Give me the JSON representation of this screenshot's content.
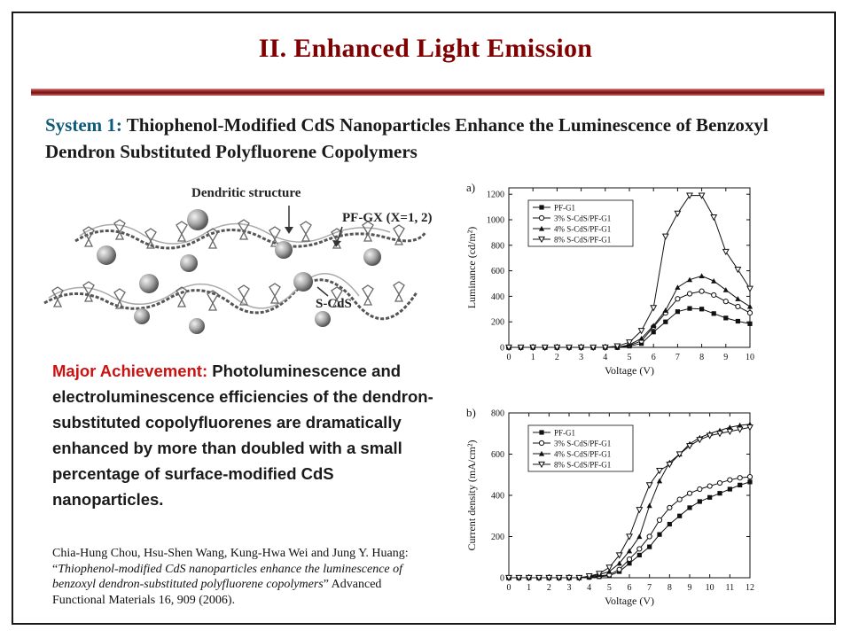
{
  "title": "II. Enhanced Light Emission",
  "subtitle": {
    "lead": "System 1:",
    "text": " Thiophenol-Modified CdS Nanoparticles Enhance the Luminescence of Benzoxyl Dendron Substituted Polyfluorene Copolymers"
  },
  "diagram": {
    "label_dendritic": "Dendritic structure",
    "label_pfgx": "PF-GX (X=1, 2)",
    "label_scds": "S-CdS"
  },
  "achievement": {
    "lead": "Major Achievement:",
    "text": " Photoluminescence and electroluminescence efficiencies of the dendron-substituted copolyfluorenes are dramatically enhanced by more than doubled with a small percentage of surface-modified CdS nanoparticles."
  },
  "citation": {
    "authors": "Chia-Hung Chou, Hsu-Shen Wang, Kung-Hwa Wei and Jung Y. Huang: “",
    "paper_title": "Thiophenol-modified CdS nanoparticles enhance the luminescence of benzoxyl dendron-substituted polyfluorene copolymers",
    "journal": "” Advanced Functional Materials 16, 909 (2006)."
  },
  "chart_data": [
    {
      "type": "line",
      "panel_label": "a)",
      "xlabel": "Voltage (V)",
      "ylabel": "Luminance (cd/m²)",
      "xlim": [
        0,
        10
      ],
      "ylim": [
        0,
        1250
      ],
      "xticks": [
        0,
        1,
        2,
        3,
        4,
        5,
        6,
        7,
        8,
        9,
        10
      ],
      "yticks": [
        0,
        200,
        400,
        600,
        800,
        1000,
        1200
      ],
      "legend_position": "top-left",
      "x": [
        0,
        0.5,
        1,
        1.5,
        2,
        2.5,
        3,
        3.5,
        4,
        4.5,
        5,
        5.5,
        6,
        6.5,
        7,
        7.5,
        8,
        8.5,
        9,
        9.5,
        10
      ],
      "series": [
        {
          "name": "PF-G1",
          "marker": "square-filled",
          "values": [
            0,
            0,
            0,
            0,
            0,
            0,
            0,
            0,
            0,
            0,
            10,
            30,
            120,
            200,
            280,
            305,
            300,
            265,
            230,
            205,
            185
          ]
        },
        {
          "name": "3% S-CdS/PF-G1",
          "marker": "circle-open",
          "values": [
            0,
            0,
            0,
            0,
            0,
            0,
            0,
            0,
            0,
            0,
            15,
            50,
            160,
            270,
            380,
            420,
            440,
            410,
            360,
            320,
            270
          ]
        },
        {
          "name": "4% S-CdS/PF-G1",
          "marker": "triangle-up-filled",
          "values": [
            0,
            0,
            0,
            0,
            0,
            0,
            0,
            0,
            0,
            0,
            20,
            70,
            170,
            290,
            470,
            530,
            560,
            520,
            450,
            380,
            320
          ]
        },
        {
          "name": "8% S-CdS/PF-G1",
          "marker": "triangle-down-open",
          "values": [
            0,
            0,
            0,
            0,
            0,
            0,
            0,
            0,
            0,
            10,
            40,
            130,
            310,
            870,
            1050,
            1190,
            1190,
            1020,
            750,
            610,
            460
          ]
        }
      ]
    },
    {
      "type": "line",
      "panel_label": "b)",
      "xlabel": "Voltage (V)",
      "ylabel": "Current density (mA/cm²)",
      "xlim": [
        0,
        12
      ],
      "ylim": [
        0,
        800
      ],
      "xticks": [
        0,
        1,
        2,
        3,
        4,
        5,
        6,
        7,
        8,
        9,
        10,
        11,
        12
      ],
      "yticks": [
        0,
        200,
        400,
        600,
        800
      ],
      "legend_position": "top-left",
      "x": [
        0,
        0.5,
        1,
        1.5,
        2,
        2.5,
        3,
        3.5,
        4,
        4.5,
        5,
        5.5,
        6,
        6.5,
        7,
        7.5,
        8,
        8.5,
        9,
        9.5,
        10,
        10.5,
        11,
        11.5,
        12
      ],
      "series": [
        {
          "name": "PF-G1",
          "marker": "square-filled",
          "values": [
            0,
            0,
            0,
            0,
            0,
            0,
            0,
            0,
            2,
            5,
            10,
            30,
            70,
            110,
            150,
            210,
            260,
            300,
            340,
            370,
            390,
            410,
            430,
            450,
            465
          ]
        },
        {
          "name": "3% S-CdS/PF-G1",
          "marker": "circle-open",
          "values": [
            0,
            0,
            0,
            0,
            0,
            0,
            0,
            0,
            3,
            8,
            15,
            40,
            90,
            140,
            200,
            280,
            340,
            380,
            410,
            430,
            445,
            460,
            475,
            485,
            490
          ]
        },
        {
          "name": "4% S-CdS/PF-G1",
          "marker": "triangle-up-filled",
          "values": [
            0,
            0,
            0,
            0,
            0,
            0,
            0,
            0,
            5,
            15,
            30,
            70,
            130,
            200,
            350,
            470,
            560,
            600,
            650,
            680,
            700,
            715,
            730,
            740,
            745
          ]
        },
        {
          "name": "8% S-CdS/PF-G1",
          "marker": "triangle-down-open",
          "values": [
            0,
            0,
            0,
            0,
            0,
            0,
            0,
            0,
            8,
            20,
            50,
            110,
            200,
            330,
            450,
            520,
            550,
            600,
            640,
            670,
            690,
            700,
            710,
            720,
            730
          ]
        }
      ]
    }
  ]
}
